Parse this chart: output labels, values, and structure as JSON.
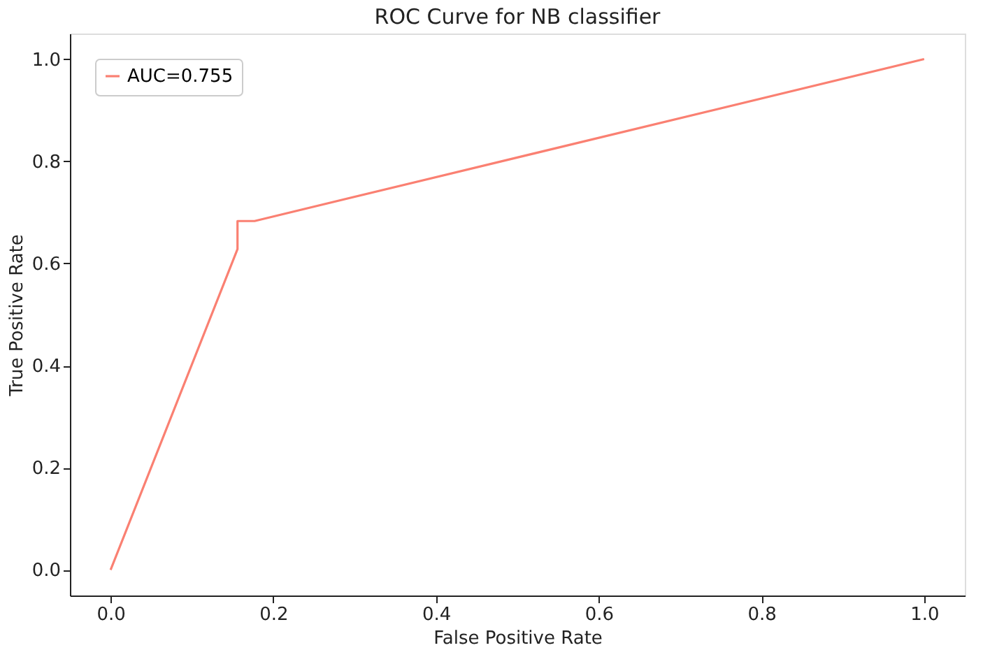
{
  "chart_data": {
    "type": "line",
    "title": "ROC Curve for NB classifier",
    "xlabel": "False Positive Rate",
    "ylabel": "True Positive Rate",
    "series": [
      {
        "name": "AUC=0.755",
        "color": "#fa8072",
        "x": [
          0,
          0.156,
          0.156,
          0.177,
          1
        ],
        "values": [
          0,
          0.628,
          0.683,
          0.683,
          1
        ]
      }
    ],
    "xlim": [
      -0.05,
      1.05
    ],
    "ylim": [
      -0.05,
      1.05
    ],
    "xticks": [
      {
        "value": 0,
        "label": "0.0"
      },
      0.2,
      0.4,
      0.6,
      0.8,
      {
        "value": 1,
        "label": "1.0"
      }
    ],
    "yticks": [
      {
        "value": 0,
        "label": "0.0"
      },
      0.2,
      0.4,
      0.6,
      0.8,
      {
        "value": 1,
        "label": "1.0"
      }
    ],
    "grid": false,
    "legend": "top left",
    "line_style": "solid",
    "marker": "none"
  }
}
